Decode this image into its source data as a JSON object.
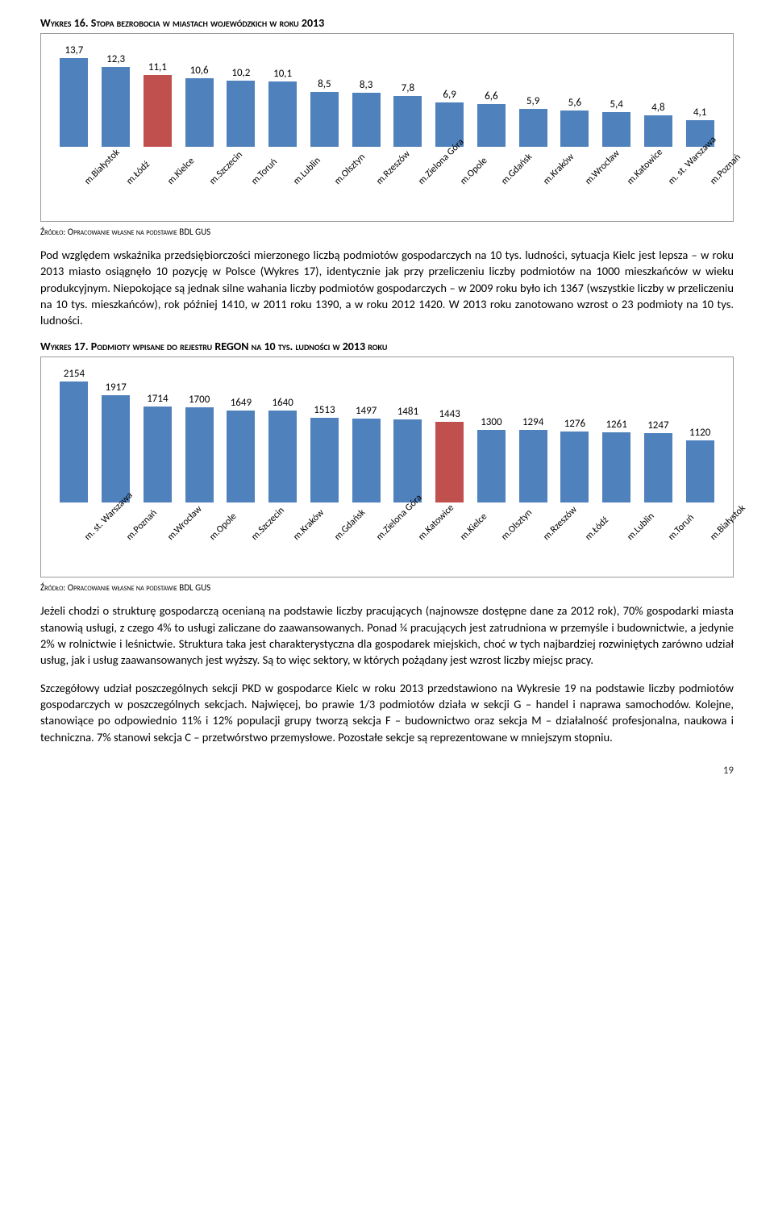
{
  "chart1": {
    "title": "Wykres 16. Stopa bezrobocia w miastach wojewódzkich w roku 2013",
    "max": 13.7,
    "height": 110,
    "bar_color": "#4f81bd",
    "highlight_color": "#c0504d",
    "items": [
      {
        "cat": "m.Białystok",
        "val": "13,7",
        "n": 13.7,
        "hl": false
      },
      {
        "cat": "m.Łódź",
        "val": "12,3",
        "n": 12.3,
        "hl": false
      },
      {
        "cat": "m.Kielce",
        "val": "11,1",
        "n": 11.1,
        "hl": true
      },
      {
        "cat": "m.Szczecin",
        "val": "10,6",
        "n": 10.6,
        "hl": false
      },
      {
        "cat": "m.Toruń",
        "val": "10,2",
        "n": 10.2,
        "hl": false
      },
      {
        "cat": "m.Lublin",
        "val": "10,1",
        "n": 10.1,
        "hl": false
      },
      {
        "cat": "m.Olsztyn",
        "val": "8,5",
        "n": 8.5,
        "hl": false
      },
      {
        "cat": "m.Rzeszów",
        "val": "8,3",
        "n": 8.3,
        "hl": false
      },
      {
        "cat": "m.Zielona Góra",
        "val": "7,8",
        "n": 7.8,
        "hl": false
      },
      {
        "cat": "m.Opole",
        "val": "6,9",
        "n": 6.9,
        "hl": false
      },
      {
        "cat": "m.Gdańsk",
        "val": "6,6",
        "n": 6.6,
        "hl": false
      },
      {
        "cat": "m.Kraków",
        "val": "5,9",
        "n": 5.9,
        "hl": false
      },
      {
        "cat": "m.Wrocław",
        "val": "5,6",
        "n": 5.6,
        "hl": false
      },
      {
        "cat": "m.Katowice",
        "val": "5,4",
        "n": 5.4,
        "hl": false
      },
      {
        "cat": "m. st. Warszawa",
        "val": "4,8",
        "n": 4.8,
        "hl": false
      },
      {
        "cat": "m.Poznań",
        "val": "4,1",
        "n": 4.1,
        "hl": false
      }
    ]
  },
  "source1": "Źródło: Opracowanie własne na podstawie BDL GUS",
  "para1": "Pod względem wskaźnika przedsiębiorczości mierzonego liczbą podmiotów gospodarczych na 10 tys. ludności, sytuacja Kielc jest lepsza – w roku 2013 miasto osiągnęło 10 pozycję w Polsce (Wykres 17), identycznie jak przy przeliczeniu liczby podmiotów na 1000 mieszkańców w wieku produkcyjnym. Niepokojące są jednak silne wahania liczby podmiotów gospodarczych – w 2009 roku było ich 1367 (wszystkie liczby w przeliczeniu na 10 tys. mieszkańców), rok później 1410, w 2011 roku 1390, a w roku 2012 1420. W 2013 roku zanotowano wzrost o 23 podmioty na 10 tys. ludności.",
  "chart2": {
    "title": "Wykres 17. Podmioty wpisane do rejestru REGON na 10 tys. ludności w 2013 roku",
    "max": 2154,
    "height": 150,
    "bar_color": "#4f81bd",
    "highlight_color": "#c0504d",
    "items": [
      {
        "cat": "m. st. Warszawa",
        "val": "2154",
        "n": 2154,
        "hl": false
      },
      {
        "cat": "m.Poznań",
        "val": "1917",
        "n": 1917,
        "hl": false
      },
      {
        "cat": "m.Wrocław",
        "val": "1714",
        "n": 1714,
        "hl": false
      },
      {
        "cat": "m.Opole",
        "val": "1700",
        "n": 1700,
        "hl": false
      },
      {
        "cat": "m.Szczecin",
        "val": "1649",
        "n": 1649,
        "hl": false
      },
      {
        "cat": "m.Kraków",
        "val": "1640",
        "n": 1640,
        "hl": false
      },
      {
        "cat": "m.Gdańsk",
        "val": "1513",
        "n": 1513,
        "hl": false
      },
      {
        "cat": "m.Zielona Góra",
        "val": "1497",
        "n": 1497,
        "hl": false
      },
      {
        "cat": "m.Katowice",
        "val": "1481",
        "n": 1481,
        "hl": false
      },
      {
        "cat": "m.Kielce",
        "val": "1443",
        "n": 1443,
        "hl": true
      },
      {
        "cat": "m.Olsztyn",
        "val": "1300",
        "n": 1300,
        "hl": false
      },
      {
        "cat": "m.Rzeszów",
        "val": "1294",
        "n": 1294,
        "hl": false
      },
      {
        "cat": "m.Łódź",
        "val": "1276",
        "n": 1276,
        "hl": false
      },
      {
        "cat": "m.Lublin",
        "val": "1261",
        "n": 1261,
        "hl": false
      },
      {
        "cat": "m.Toruń",
        "val": "1247",
        "n": 1247,
        "hl": false
      },
      {
        "cat": "m.Białystok",
        "val": "1120",
        "n": 1120,
        "hl": false
      }
    ]
  },
  "source2": "Źródło: Opracowanie własne na podstawie BDL GUS",
  "para2": "Jeżeli chodzi o strukturę gospodarczą ocenianą na podstawie liczby pracujących (najnowsze dostępne dane za 2012 rok), 70% gospodarki miasta stanowią usługi, z czego 4% to usługi zaliczane do zaawansowanych. Ponad ¼ pracujących jest zatrudniona w przemyśle i budownictwie, a jedynie 2% w rolnictwie i leśnictwie. Struktura taka jest charakterystyczna dla gospodarek miejskich, choć w tych najbardziej rozwiniętych zarówno udział usług, jak i usług zaawansowanych jest wyższy. Są to więc sektory, w których pożądany jest wzrost liczby miejsc pracy.",
  "para3": "Szczegółowy udział poszczególnych sekcji PKD w gospodarce Kielc w roku 2013 przedstawiono na Wykresie 19 na podstawie liczby podmiotów gospodarczych w poszczególnych sekcjach. Najwięcej, bo prawie 1/3 podmiotów działa w sekcji G – handel i naprawa samochodów. Kolejne, stanowiące po odpowiednio 11% i 12% populacji grupy tworzą sekcja F – budownictwo oraz sekcja M – działalność profesjonalna, naukowa i techniczna. 7% stanowi sekcja C – przetwórstwo przemysłowe. Pozostałe sekcje są reprezentowane w mniejszym stopniu.",
  "page": "19"
}
